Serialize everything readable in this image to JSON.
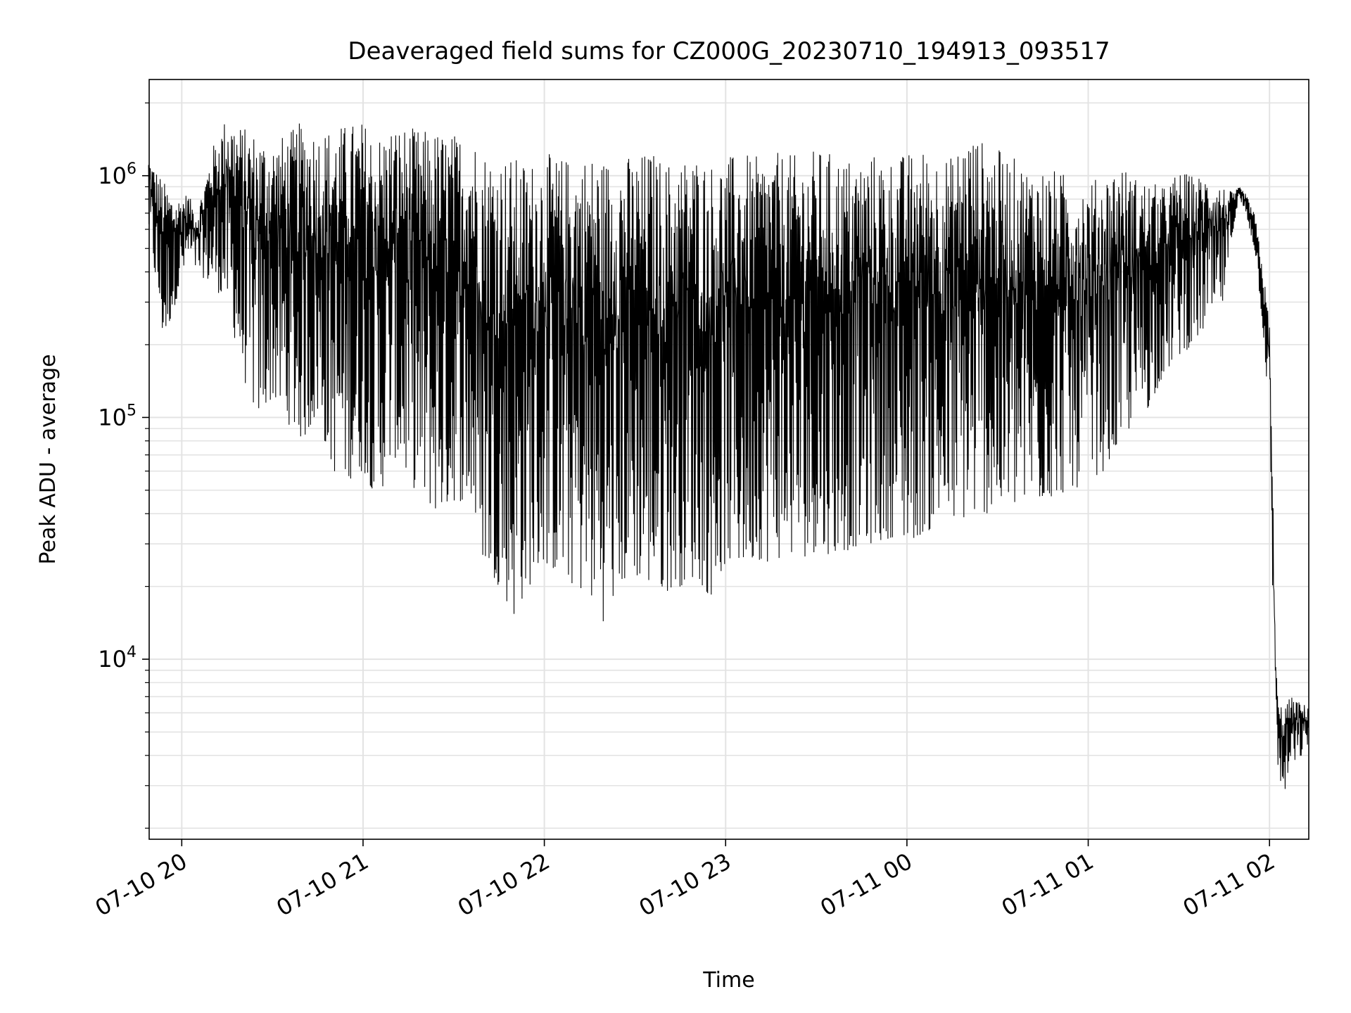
{
  "chart_data": {
    "type": "line",
    "title": "Deaveraged field sums for CZ000G_20230710_194913_093517",
    "xlabel": "Time",
    "ylabel": "Peak ADU - average",
    "x_ticks": [
      "07-10 20",
      "07-10 21",
      "07-10 22",
      "07-10 23",
      "07-11 00",
      "07-11 01",
      "07-11 02"
    ],
    "y_ticks": [
      {
        "value": 10000,
        "base": "10",
        "exp": "4"
      },
      {
        "value": 100000,
        "base": "10",
        "exp": "5"
      },
      {
        "value": 1000000,
        "base": "10",
        "exp": "6"
      }
    ],
    "xlim": [
      "2023-07-10 19:49:13",
      "2023-07-11 02:13:00"
    ],
    "ylim": [
      1800,
      2500000
    ],
    "y_scale": "log",
    "grid": true,
    "line_color": "#000000",
    "series": [
      {
        "x": [
          "2023-07-10 19:49",
          "2023-07-10 19:54",
          "2023-07-10 19:58",
          "2023-07-10 20:02",
          "2023-07-10 20:05",
          "2023-07-10 20:10",
          "2023-07-10 20:15",
          "2023-07-10 20:20",
          "2023-07-10 20:25",
          "2023-07-10 20:30",
          "2023-07-10 20:35",
          "2023-07-10 20:40",
          "2023-07-10 20:45",
          "2023-07-10 20:50",
          "2023-07-10 20:55",
          "2023-07-10 21:00",
          "2023-07-10 21:05",
          "2023-07-10 21:10",
          "2023-07-10 21:15",
          "2023-07-10 21:20",
          "2023-07-10 21:25",
          "2023-07-10 21:30",
          "2023-07-10 21:35",
          "2023-07-10 21:40",
          "2023-07-10 21:45",
          "2023-07-10 21:50",
          "2023-07-10 21:55",
          "2023-07-10 22:00",
          "2023-07-10 22:05",
          "2023-07-10 22:10",
          "2023-07-10 22:15",
          "2023-07-10 22:20",
          "2023-07-10 22:25",
          "2023-07-10 22:30",
          "2023-07-10 22:35",
          "2023-07-10 22:40",
          "2023-07-10 22:45",
          "2023-07-10 22:50",
          "2023-07-10 22:55",
          "2023-07-10 23:00",
          "2023-07-10 23:05",
          "2023-07-10 23:10",
          "2023-07-10 23:15",
          "2023-07-10 23:20",
          "2023-07-10 23:25",
          "2023-07-10 23:30",
          "2023-07-10 23:35",
          "2023-07-10 23:40",
          "2023-07-10 23:45",
          "2023-07-10 23:50",
          "2023-07-10 23:55",
          "2023-07-11 00:00",
          "2023-07-11 00:05",
          "2023-07-11 00:10",
          "2023-07-11 00:15",
          "2023-07-11 00:20",
          "2023-07-11 00:25",
          "2023-07-11 00:30",
          "2023-07-11 00:35",
          "2023-07-11 00:40",
          "2023-07-11 00:45",
          "2023-07-11 00:50",
          "2023-07-11 00:55",
          "2023-07-11 01:00",
          "2023-07-11 01:05",
          "2023-07-11 01:10",
          "2023-07-11 01:15",
          "2023-07-11 01:20",
          "2023-07-11 01:25",
          "2023-07-11 01:30",
          "2023-07-11 01:35",
          "2023-07-11 01:40",
          "2023-07-11 01:45",
          "2023-07-11 01:48",
          "2023-07-11 01:50",
          "2023-07-11 01:52",
          "2023-07-11 01:55",
          "2023-07-11 01:57",
          "2023-07-11 02:00",
          "2023-07-11 02:01",
          "2023-07-11 02:02",
          "2023-07-11 02:03",
          "2023-07-11 02:05",
          "2023-07-11 02:07",
          "2023-07-11 02:09",
          "2023-07-11 02:11",
          "2023-07-11 02:13"
        ],
        "max": [
          1200000,
          950000,
          800000,
          850000,
          700000,
          1300000,
          1800000,
          1600000,
          1500000,
          1400000,
          1500000,
          1700000,
          1550000,
          1600000,
          1650000,
          1700000,
          1500000,
          1650000,
          1600000,
          1550000,
          1550000,
          1500000,
          1550000,
          1300000,
          1250000,
          1200000,
          1150000,
          1250000,
          1200000,
          1200000,
          1250000,
          1200000,
          1250000,
          1200000,
          1300000,
          1150000,
          1200000,
          1250000,
          1150000,
          1200000,
          1250000,
          1200000,
          1250000,
          1250000,
          1200000,
          1300000,
          1250000,
          1200000,
          1200000,
          1250000,
          1200000,
          1250000,
          1300000,
          1250000,
          1200000,
          1550000,
          1400000,
          1300000,
          1200000,
          1100000,
          1100000,
          1050000,
          1000000,
          950000,
          1000000,
          1150000,
          1000000,
          950000,
          900000,
          1050000,
          1000000,
          1000000,
          900000,
          850000,
          900000,
          850000,
          700000,
          500000,
          250000,
          60000,
          10000,
          6500,
          6500,
          7000,
          6800,
          6500,
          6500
        ],
        "min": [
          600000,
          200000,
          300000,
          450000,
          400000,
          350000,
          300000,
          150000,
          100000,
          120000,
          95000,
          80000,
          100000,
          60000,
          55000,
          60000,
          45000,
          70000,
          55000,
          45000,
          40000,
          45000,
          45000,
          25000,
          20000,
          15000,
          20000,
          25000,
          22000,
          20000,
          18000,
          14000,
          20000,
          22000,
          20000,
          19000,
          20000,
          22000,
          18000,
          25000,
          24000,
          26000,
          25000,
          27000,
          26000,
          28000,
          27000,
          28000,
          30000,
          30000,
          32000,
          30000,
          33000,
          35000,
          37000,
          38000,
          40000,
          40000,
          42000,
          44000,
          45000,
          48000,
          50000,
          55000,
          60000,
          75000,
          95000,
          110000,
          150000,
          180000,
          200000,
          250000,
          300000,
          600000,
          800000,
          700000,
          500000,
          300000,
          100000,
          20000,
          8000,
          3000,
          2800,
          3500,
          3800,
          4000,
          4500
        ]
      }
    ]
  }
}
